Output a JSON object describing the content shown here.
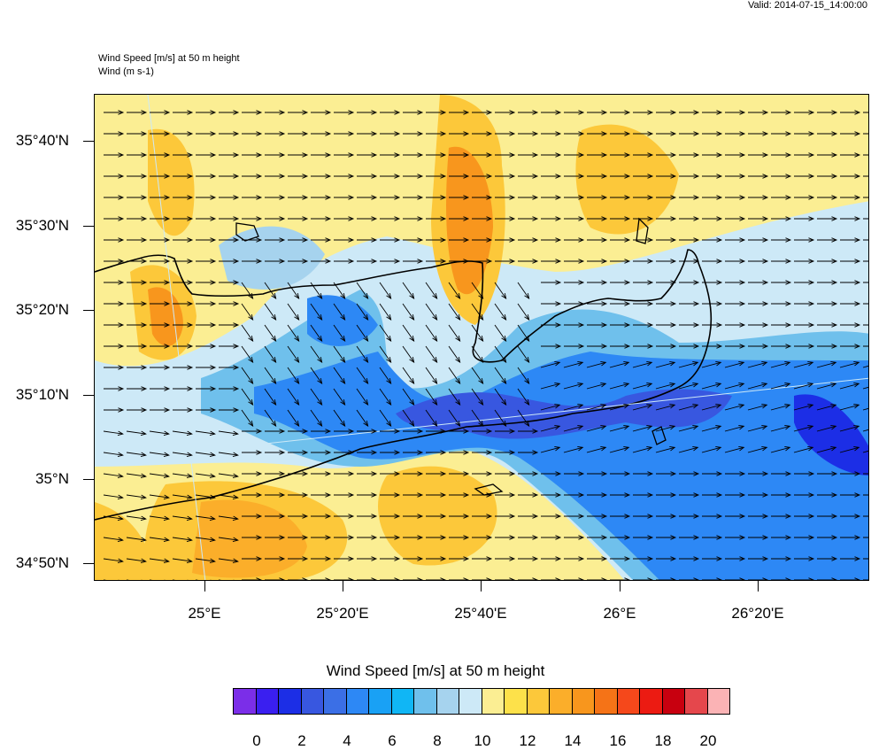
{
  "valid_time": "Valid: 2014-07-15_14:00:00",
  "field_title": "Wind Speed [m/s] at 50 m height",
  "vector_title": "Wind   (m s-1)",
  "lat_labels": [
    "35°40'N",
    "35°30'N",
    "35°20'N",
    "35°10'N",
    "35°N",
    "34°50'N"
  ],
  "lon_labels": [
    "25°E",
    "25°20'E",
    "25°40'E",
    "26°E",
    "26°20'E"
  ],
  "colorbar": {
    "title": "Wind Speed [m/s] at 50 m height",
    "labels": [
      "0",
      "2",
      "4",
      "6",
      "8",
      "10",
      "12",
      "14",
      "16",
      "18",
      "20"
    ],
    "colors": [
      "#7b2ee8",
      "#3a1ff0",
      "#1c2ee6",
      "#3857e0",
      "#3b6fe6",
      "#2d88f5",
      "#19a1f5",
      "#10b6f5",
      "#6fc0ec",
      "#a6d3ee",
      "#cde9f7",
      "#fbee93",
      "#fde14a",
      "#fcc83a",
      "#fbae2a",
      "#f8961d",
      "#f57317",
      "#f5481b",
      "#ec1b12",
      "#c8000f",
      "#e5474c",
      "#fbb3b5"
    ]
  },
  "map": {
    "wind_field": "mostly easterly-flowing (west-to-east) wind arrows over Crete region",
    "colors": {
      "land_outline": "#000000",
      "low_wind": "#2d88f5",
      "high_wind": "#fcc83a"
    }
  }
}
